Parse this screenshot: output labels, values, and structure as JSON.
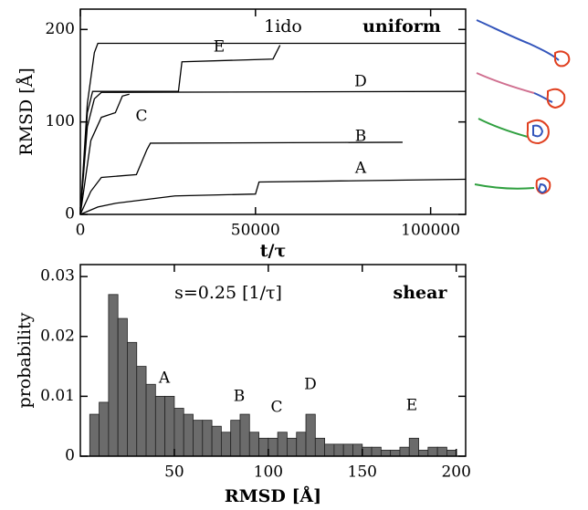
{
  "chart_data": [
    {
      "type": "line",
      "xlabel": "t/τ",
      "ylabel": "RMSD [Å]",
      "annotations": [
        "1ido",
        "uniform"
      ],
      "xlim": [
        0,
        110000
      ],
      "ylim": [
        0,
        222
      ],
      "xticks": [
        0,
        50000,
        100000
      ],
      "yticks": [
        0,
        100,
        200
      ],
      "series": [
        {
          "color": "#000000",
          "x": [
            0,
            2000,
            4000,
            5000,
            110000
          ],
          "values": [
            0,
            120,
            175,
            185,
            185
          ]
        },
        {
          "name": "E",
          "color": "#000000",
          "x": [
            0,
            2000,
            3500,
            28000,
            29000,
            55000,
            57000
          ],
          "values": [
            0,
            110,
            133,
            133,
            165,
            168,
            183
          ]
        },
        {
          "name": "D",
          "color": "#000000",
          "x": [
            0,
            2000,
            4000,
            6000,
            110000
          ],
          "values": [
            0,
            95,
            125,
            132,
            133
          ]
        },
        {
          "name": "C",
          "color": "#000000",
          "x": [
            0,
            3000,
            6000,
            10000,
            12000,
            14000
          ],
          "values": [
            0,
            80,
            105,
            110,
            128,
            130
          ]
        },
        {
          "name": "B",
          "color": "#000000",
          "x": [
            0,
            3000,
            6000,
            16000,
            19000,
            20000,
            92000
          ],
          "values": [
            0,
            25,
            40,
            43,
            70,
            77,
            78
          ]
        },
        {
          "name": "A",
          "color": "#000000",
          "x": [
            0,
            5000,
            10000,
            27000,
            50000,
            51000,
            110000
          ],
          "values": [
            0,
            8,
            12,
            20,
            22,
            35,
            38
          ]
        }
      ]
    },
    {
      "type": "histogram",
      "xlabel": "RMSD [Å]",
      "ylabel": "probability",
      "annotations": [
        "s=0.25 [1/τ]",
        "shear"
      ],
      "labels": [
        "A",
        "B",
        "C",
        "D",
        "E"
      ],
      "color": "#6b6b6b",
      "xlim": [
        0,
        205
      ],
      "ylim": [
        0,
        0.032
      ],
      "xticks": [
        50,
        100,
        150,
        200
      ],
      "yticks": [
        0,
        0.01,
        0.02,
        0.03
      ],
      "bins": [
        5,
        10,
        15,
        20,
        25,
        30,
        35,
        40,
        45,
        50,
        55,
        60,
        65,
        70,
        75,
        80,
        85,
        90,
        95,
        100,
        105,
        110,
        115,
        120,
        125,
        130,
        135,
        140,
        145,
        150,
        155,
        160,
        165,
        170,
        175,
        180,
        185,
        190,
        195,
        200
      ],
      "values": [
        0.007,
        0.009,
        0.027,
        0.023,
        0.019,
        0.015,
        0.012,
        0.01,
        0.01,
        0.008,
        0.007,
        0.006,
        0.006,
        0.005,
        0.004,
        0.006,
        0.007,
        0.004,
        0.003,
        0.003,
        0.004,
        0.003,
        0.004,
        0.007,
        0.003,
        0.002,
        0.002,
        0.002,
        0.002,
        0.0015,
        0.0015,
        0.001,
        0.001,
        0.0015,
        0.003,
        0.001,
        0.0015,
        0.0015,
        0.001
      ]
    }
  ]
}
